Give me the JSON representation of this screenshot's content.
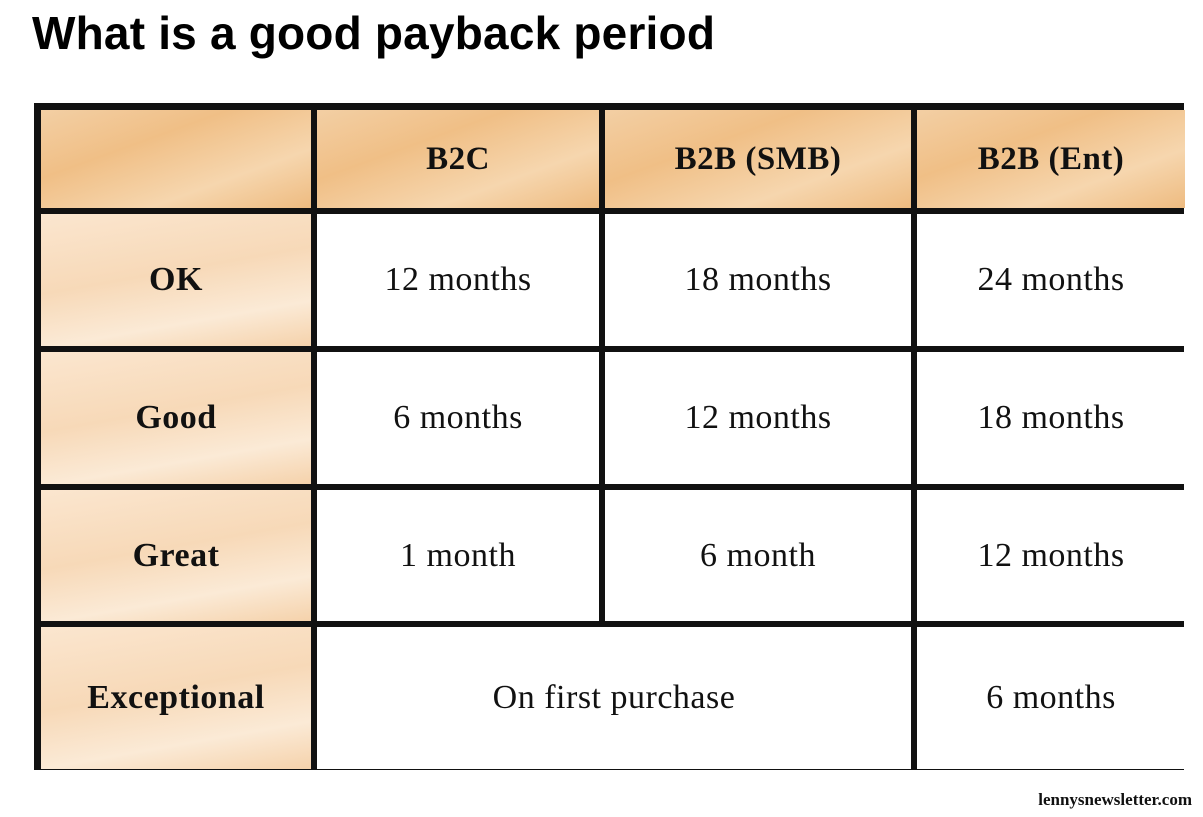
{
  "title": "What is a good payback period",
  "table": {
    "corner": "",
    "headers": [
      "B2C",
      "B2B (SMB)",
      "B2B (Ent)"
    ],
    "rows": [
      {
        "label": "OK",
        "b2c": "12 months",
        "smb": "18 months",
        "ent": "24 months"
      },
      {
        "label": "Good",
        "b2c": "6 months",
        "smb": "12 months",
        "ent": "18 months"
      },
      {
        "label": "Great",
        "b2c": "1 month",
        "smb": "6 month",
        "ent": "12 months"
      },
      {
        "label": "Exceptional",
        "merged": "On first purchase",
        "ent": "6 months"
      }
    ]
  },
  "footer": "lennysnewsletter.com",
  "colors": {
    "header_fill": "#f0bf86",
    "row_label_fill": "#f7d9b8",
    "grid_line": "#111111"
  }
}
